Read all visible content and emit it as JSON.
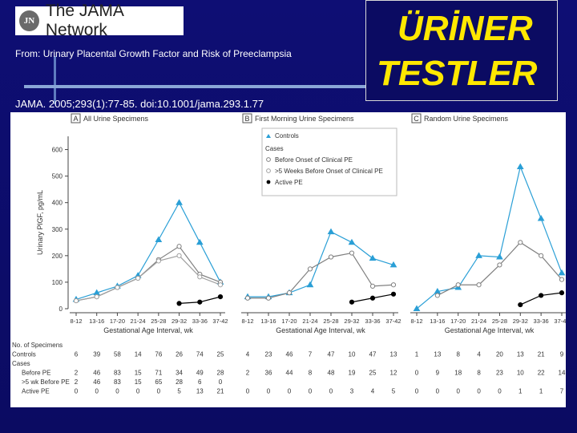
{
  "header": {
    "logo_mark": "JN",
    "logo_text": "The JAMA Network",
    "from_prefix": "From:",
    "article_title": "Urinary Placental Growth Factor and Risk of Preeclampsia",
    "citation": "JAMA. 2005;293(1):77-85. doi:10.1001/jama.293.1.77"
  },
  "slide_title": {
    "line1": "ÜRİNER",
    "line2": "TESTLER"
  },
  "colors": {
    "background": "#0e0e74",
    "title": "#ffe800",
    "controls": "#2a9fd6",
    "before_pe": "#808080",
    "gt5wk": "#a0a0a0",
    "active_pe": "#000000"
  },
  "chart_data": {
    "type": "line",
    "ylabel": "Urinary PlGF, pg/mL",
    "xlabel": "Gestational Age Interval, wk",
    "ylim": [
      0,
      650
    ],
    "yticks": [
      0,
      100,
      200,
      300,
      400,
      500,
      600
    ],
    "categories": [
      "8-12",
      "13-16",
      "17-20",
      "21-24",
      "25-28",
      "29-32",
      "33-36",
      "37-42"
    ],
    "legend": {
      "title_controls": "Controls",
      "cases_header": "Cases",
      "before_pe": "Before Onset of Clinical PE",
      "gt5wk": ">5 Weeks Before Onset of Clinical PE",
      "active_pe": "Active PE"
    },
    "panels": [
      {
        "letter": "A",
        "title": "All Urine Specimens",
        "series": [
          {
            "name": "Controls",
            "values": [
              35,
              60,
              85,
              125,
              260,
              400,
              250,
              100
            ]
          },
          {
            "name": "Before Onset of Clinical PE",
            "values": [
              30,
              45,
              80,
              115,
              185,
              235,
              130,
              100
            ]
          },
          {
            "name": ">5 Weeks Before Onset of Clinical PE",
            "values": [
              30,
              45,
              80,
              115,
              180,
              200,
              120,
              90
            ]
          },
          {
            "name": "Active PE",
            "values": [
              null,
              null,
              null,
              null,
              null,
              20,
              25,
              45
            ]
          }
        ]
      },
      {
        "letter": "B",
        "title": "First Morning Urine Specimens",
        "series": [
          {
            "name": "Controls",
            "values": [
              45,
              45,
              60,
              90,
              290,
              250,
              190,
              165
            ]
          },
          {
            "name": "Before Onset of Clinical PE",
            "values": [
              40,
              40,
              60,
              150,
              195,
              210,
              85,
              90
            ]
          },
          {
            "name": "Active PE",
            "values": [
              null,
              null,
              null,
              null,
              null,
              25,
              40,
              55
            ]
          }
        ]
      },
      {
        "letter": "C",
        "title": "Random Urine Specimens",
        "series": [
          {
            "name": "Controls",
            "values": [
              0,
              65,
              80,
              200,
              195,
              535,
              340,
              135
            ]
          },
          {
            "name": "Before Onset of Clinical PE",
            "values": [
              null,
              50,
              90,
              90,
              165,
              250,
              200,
              110
            ]
          },
          {
            "name": "Active PE",
            "values": [
              null,
              null,
              null,
              null,
              null,
              15,
              50,
              60
            ]
          }
        ]
      }
    ],
    "table": {
      "title": "No. of Specimens",
      "rows": [
        {
          "label": "Controls",
          "values": [
            "6",
            "39",
            "58",
            "14",
            "76",
            "26",
            "74",
            "25",
            "4",
            "23",
            "46",
            "7",
            "47",
            "10",
            "47",
            "13",
            "1",
            "13",
            "8",
            "4",
            "20",
            "13",
            "21",
            "9"
          ]
        },
        {
          "label": "Cases",
          "values": []
        },
        {
          "label": "Before PE",
          "values": [
            "2",
            "46",
            "83",
            "15",
            "71",
            "34",
            "49",
            "28",
            "2",
            "36",
            "44",
            "8",
            "48",
            "19",
            "25",
            "12",
            "0",
            "9",
            "18",
            "8",
            "23",
            "10",
            "22",
            "14"
          ]
        },
        {
          "label": ">5 wk Before PE",
          "values": [
            "2",
            "46",
            "83",
            "15",
            "65",
            "28",
            "6",
            "0",
            "",
            "",
            "",
            "",
            "",
            "",
            "",
            "",
            "",
            "",
            "",
            "",
            "",
            "",
            "",
            ""
          ]
        },
        {
          "label": "Active PE",
          "values": [
            "0",
            "0",
            "0",
            "0",
            "0",
            "5",
            "13",
            "21",
            "0",
            "0",
            "0",
            "0",
            "0",
            "3",
            "4",
            "5",
            "0",
            "0",
            "0",
            "0",
            "0",
            "1",
            "1",
            "7"
          ]
        }
      ]
    }
  }
}
